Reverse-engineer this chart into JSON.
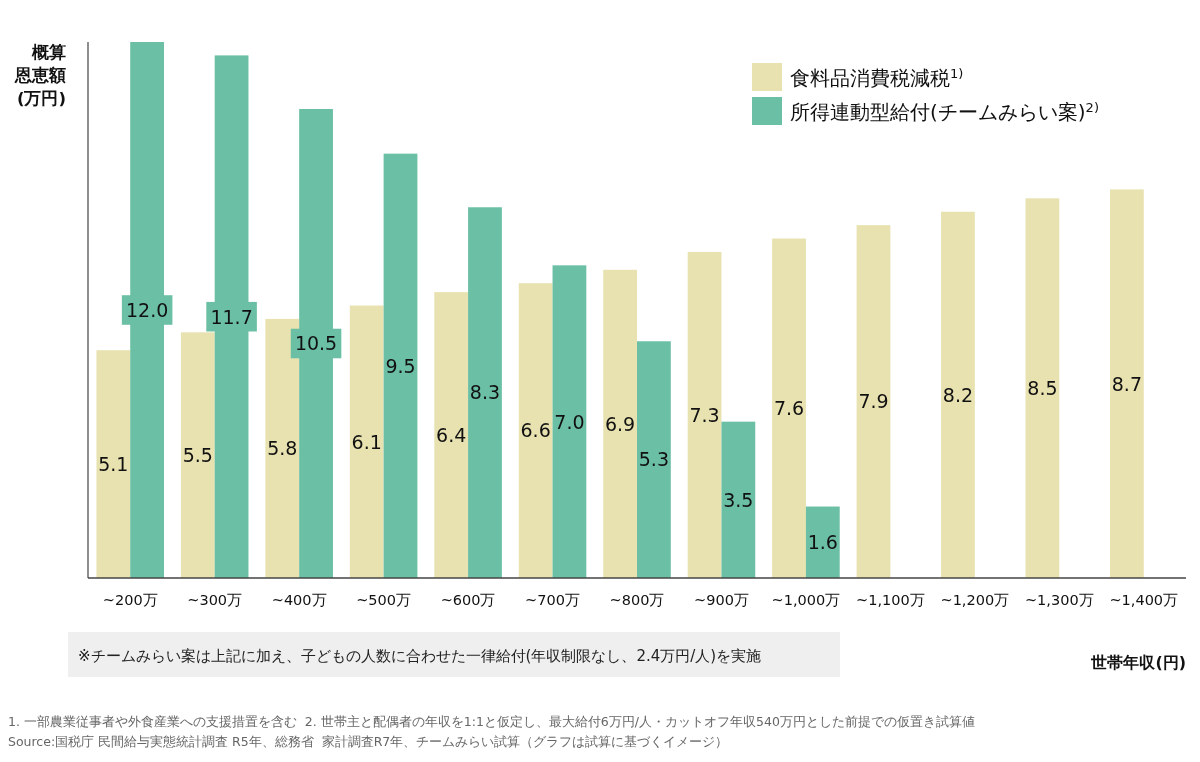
{
  "chart_data": {
    "type": "bar",
    "ylabel": "概算恩恵額(万円)",
    "xlabel": "世帯年収(円)",
    "categories": [
      "~200万",
      "~300万",
      "~400万",
      "~500万",
      "~600万",
      "~700万",
      "~800万",
      "~900万",
      "~1,000万",
      "~1,100万",
      "~1,200万",
      "~1,300万",
      "~1,400万"
    ],
    "series": [
      {
        "name": "食料品消費税減税$^{1)}$",
        "color": "#e8e2b0",
        "values": [
          5.1,
          5.5,
          5.8,
          6.1,
          6.4,
          6.6,
          6.9,
          7.3,
          7.6,
          7.9,
          8.2,
          8.5,
          8.7
        ],
        "value_labels": [
          "5.1",
          "5.5",
          "5.8",
          "6.1",
          "6.4",
          "6.6",
          "6.9",
          "7.3",
          "7.6",
          "7.9",
          "8.2",
          "8.5",
          "8.7"
        ]
      },
      {
        "name": "所得連動型給付(チームみらい案)$^{2)}$",
        "color": "#6bbfa4",
        "values": [
          12.0,
          11.7,
          10.5,
          9.5,
          8.3,
          7.0,
          5.3,
          3.5,
          1.6,
          null,
          null,
          null,
          null
        ],
        "value_labels": [
          "12.0",
          "11.7",
          "10.5",
          "9.5",
          "8.3",
          "7.0",
          "5.3",
          "3.5",
          "1.6",
          null,
          null,
          null,
          null
        ]
      }
    ],
    "ylim": [
      0,
      12
    ],
    "tick_labels": "x",
    "legend": "top right",
    "annotations": [
      "※チームみらい案は上記に加え、子どもの人数に合わせた一律給付(年収制限なし、2.4万円/人)を実施",
      "1. 一部農業従事者や外食産業への支援措置を含む  2. 世帯主と配偶者の年収を1:1と仮定し、最大給付6万円/人・カットオフ年収540万円とした前提での仮置き試算値",
      "Source:国税庁 民間給与実態統計調査 R5年、総務省  家計調査R7年、チームみらい試算（グラフは試算に基づくイメージ）"
    ]
  }
}
